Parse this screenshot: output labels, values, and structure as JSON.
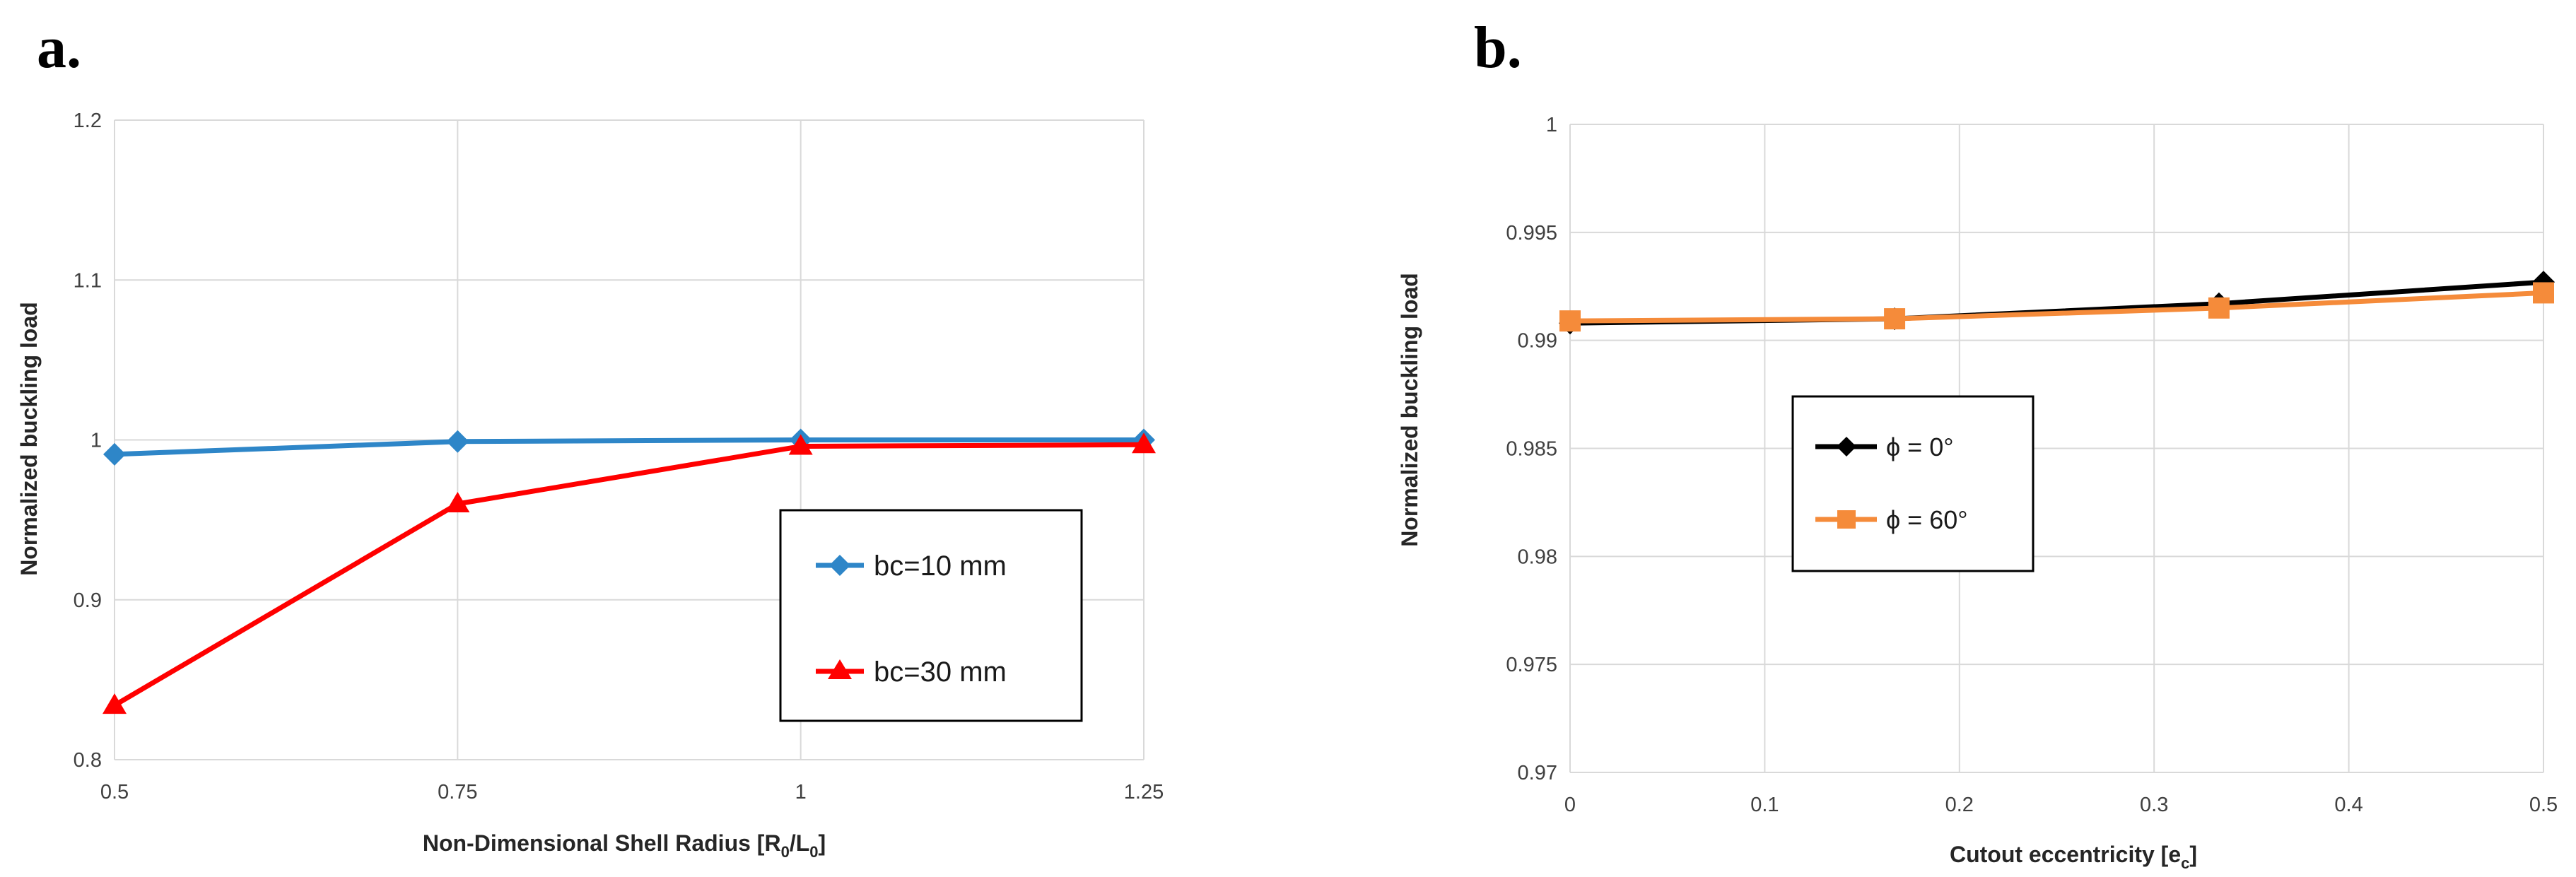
{
  "chart_data": [
    {
      "panel": "a.",
      "type": "line",
      "xlabel_main": "Non-Dimensional Shell Radius [R",
      "xlabel_sub1": "0",
      "xlabel_mid": "/L",
      "xlabel_sub2": "0",
      "xlabel_end": "]",
      "ylabel": "Normalized buckling load",
      "x": [
        0.5,
        0.75,
        1,
        1.25
      ],
      "x_tick_labels": [
        "0.5",
        "0.75",
        "1",
        "1.25"
      ],
      "ylim": [
        0.8,
        1.2
      ],
      "y_ticks": [
        0.8,
        0.9,
        1.0,
        1.1,
        1.2
      ],
      "y_tick_labels": [
        "0.8",
        "0.9",
        "1",
        "1.1",
        "1.2"
      ],
      "series": [
        {
          "name": "bc=10 mm",
          "values": [
            0.991,
            0.999,
            1.0,
            1.0
          ],
          "color": "#2E86C8",
          "marker": "diamond"
        },
        {
          "name": "bc=30 mm",
          "values": [
            0.834,
            0.96,
            0.996,
            0.997
          ],
          "color": "#FF0000",
          "marker": "triangle"
        }
      ],
      "legend_position": "center-right"
    },
    {
      "panel": "b.",
      "type": "line",
      "xlabel_main": "Cutout eccentricity [e",
      "xlabel_sub1": "c",
      "xlabel_end": "]",
      "ylabel": "Normalized buckling load",
      "x": [
        0,
        0.1667,
        0.3333,
        0.5
      ],
      "x_ticks": [
        0,
        0.1,
        0.2,
        0.3,
        0.4,
        0.5
      ],
      "x_tick_labels": [
        "0",
        "0.1",
        "0.2",
        "0.3",
        "0.4",
        "0.5"
      ],
      "ylim": [
        0.97,
        1.0
      ],
      "y_ticks": [
        0.97,
        0.975,
        0.98,
        0.985,
        0.99,
        0.995,
        1.0
      ],
      "y_tick_labels": [
        "0.97",
        "0.975",
        "0.98",
        "0.985",
        "0.99",
        "0.995",
        "1"
      ],
      "series": [
        {
          "name": "ϕ = 0°",
          "values": [
            0.9908,
            0.991,
            0.9917,
            0.9927
          ],
          "color": "#000000",
          "marker": "diamond"
        },
        {
          "name": "ϕ = 60°",
          "values": [
            0.9909,
            0.991,
            0.9915,
            0.9922
          ],
          "color": "#F58B3A",
          "marker": "square"
        }
      ],
      "legend_position": "center-left"
    }
  ]
}
